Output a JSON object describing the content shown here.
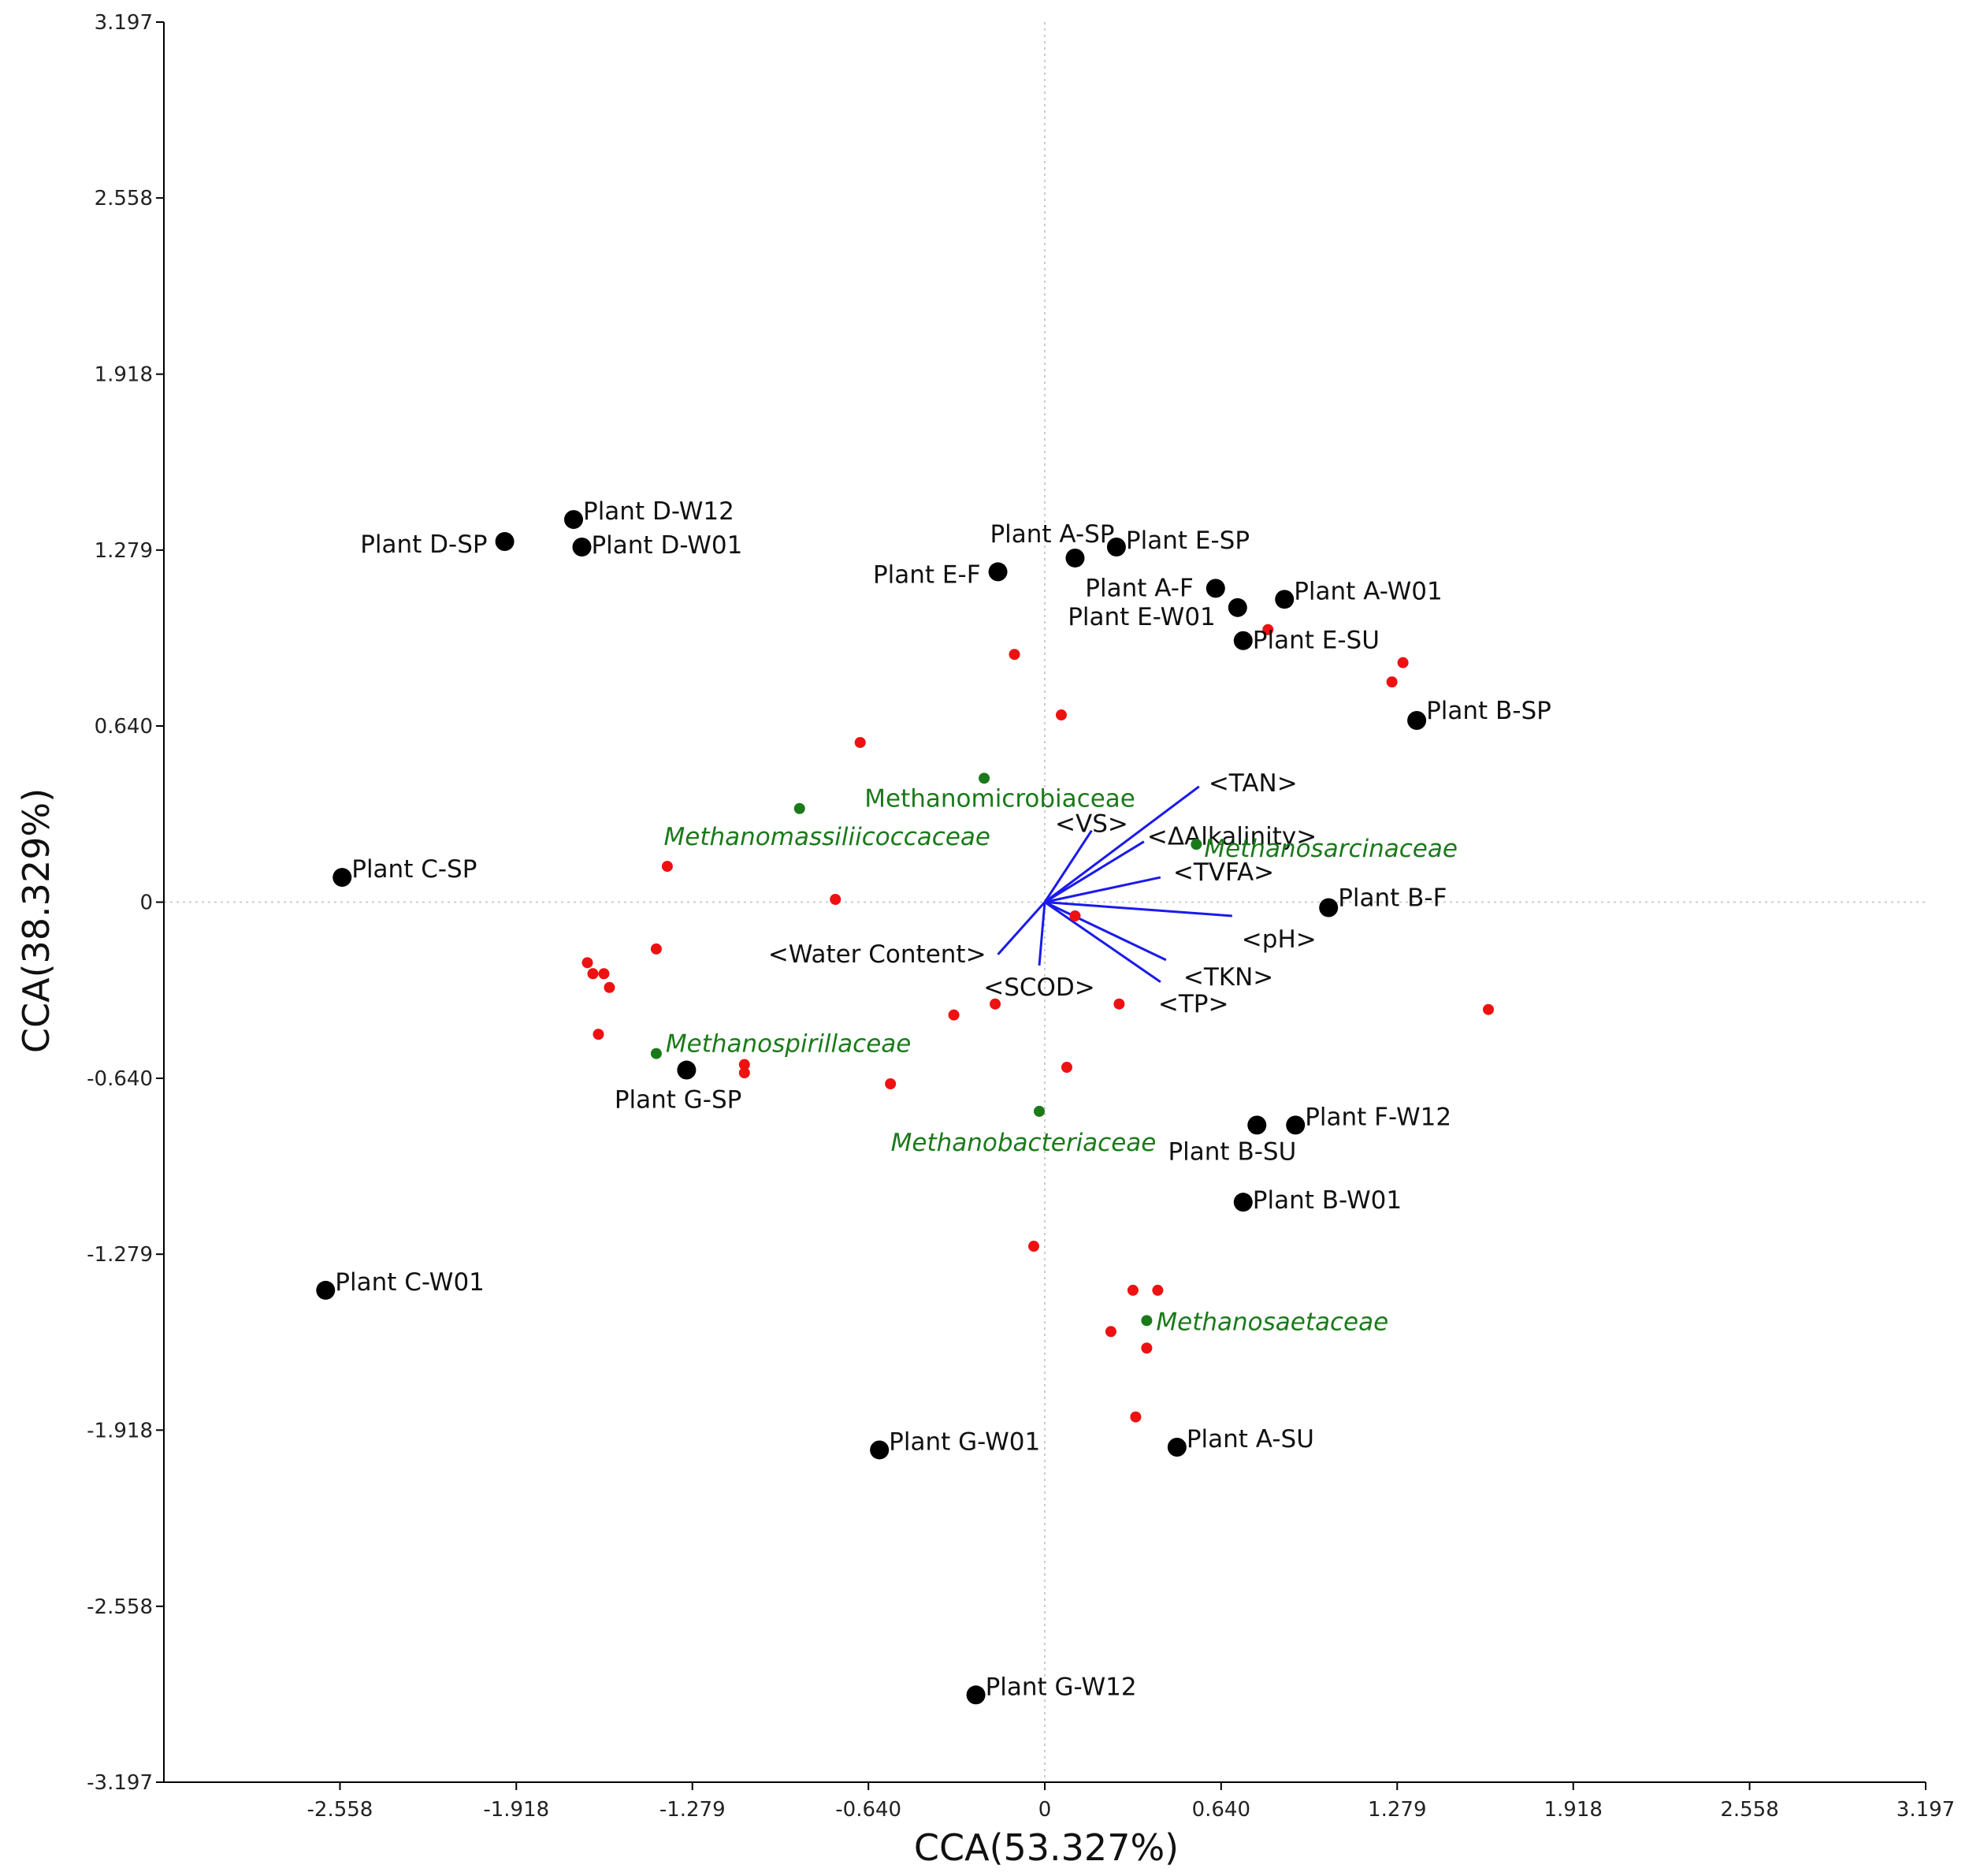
{
  "chart_data": {
    "type": "scatter",
    "xlabel": "CCA(53.327%)",
    "ylabel": "CCA(38.329%)",
    "xlim": [
      -3.197,
      3.197
    ],
    "ylim": [
      -3.197,
      3.197
    ],
    "x_ticks": [
      "-2.558",
      "-1.918",
      "-1.279",
      "-0.640",
      "0",
      "0.640",
      "1.279",
      "1.918",
      "2.558",
      "3.197"
    ],
    "y_ticks": [
      "3.197",
      "2.558",
      "1.918",
      "1.279",
      "0.640",
      "0",
      "-0.640",
      "-1.279",
      "-1.918",
      "-2.558",
      "-3.197"
    ],
    "grid": "dotted zero lines",
    "colors": {
      "sites": "#000000",
      "otus": "#ee1111",
      "taxa": "#1a7a1a",
      "env": "#1a1aee"
    },
    "sites": [
      {
        "label": "Plant D-W12",
        "x": -1.71,
        "y": 1.39
      },
      {
        "label": "Plant D-SP",
        "x": -1.96,
        "y": 1.31
      },
      {
        "label": "Plant D-W01",
        "x": -1.68,
        "y": 1.29
      },
      {
        "label": "Plant A-SP",
        "x": 0.11,
        "y": 1.25
      },
      {
        "label": "Plant E-SP",
        "x": 0.26,
        "y": 1.29
      },
      {
        "label": "Plant E-F",
        "x": -0.17,
        "y": 1.2
      },
      {
        "label": "Plant A-F",
        "x": 0.62,
        "y": 1.14
      },
      {
        "label": "Plant A-W01",
        "x": 0.87,
        "y": 1.1
      },
      {
        "label": "Plant E-W01",
        "x": 0.7,
        "y": 1.07
      },
      {
        "label": "Plant E-SU",
        "x": 0.72,
        "y": 0.95
      },
      {
        "label": "Plant B-SP",
        "x": 1.35,
        "y": 0.66
      },
      {
        "label": "Plant C-SP",
        "x": -2.55,
        "y": 0.09
      },
      {
        "label": "Plant B-F",
        "x": 1.03,
        "y": -0.02
      },
      {
        "label": "Plant G-SP",
        "x": -1.3,
        "y": -0.61
      },
      {
        "label": "Plant F-W12",
        "x": 0.91,
        "y": -0.81
      },
      {
        "label": "Plant B-SU",
        "x": 0.77,
        "y": -0.81
      },
      {
        "label": "Plant B-W01",
        "x": 0.72,
        "y": -1.09
      },
      {
        "label": "Plant C-W01",
        "x": -2.61,
        "y": -1.41
      },
      {
        "label": "Plant A-SU",
        "x": 0.48,
        "y": -1.98
      },
      {
        "label": "Plant G-W01",
        "x": -0.6,
        "y": -1.99
      },
      {
        "label": "Plant G-W12",
        "x": -0.25,
        "y": -2.88
      }
    ],
    "otus": [
      {
        "x": 0.81,
        "y": 0.99
      },
      {
        "x": -0.11,
        "y": 0.9
      },
      {
        "x": 1.3,
        "y": 0.87
      },
      {
        "x": 1.26,
        "y": 0.8
      },
      {
        "x": 0.06,
        "y": 0.68
      },
      {
        "x": -0.67,
        "y": 0.58
      },
      {
        "x": -1.37,
        "y": 0.13
      },
      {
        "x": -0.76,
        "y": 0.01
      },
      {
        "x": 0.11,
        "y": -0.05
      },
      {
        "x": -1.41,
        "y": -0.17
      },
      {
        "x": -1.66,
        "y": -0.22
      },
      {
        "x": -1.64,
        "y": -0.26
      },
      {
        "x": -1.6,
        "y": -0.26
      },
      {
        "x": -1.58,
        "y": -0.31
      },
      {
        "x": -1.62,
        "y": -0.48
      },
      {
        "x": -0.33,
        "y": -0.41
      },
      {
        "x": -0.18,
        "y": -0.37
      },
      {
        "x": 0.27,
        "y": -0.37
      },
      {
        "x": 1.61,
        "y": -0.39
      },
      {
        "x": -1.09,
        "y": -0.59
      },
      {
        "x": -1.09,
        "y": -0.62
      },
      {
        "x": 0.08,
        "y": -0.6
      },
      {
        "x": -0.56,
        "y": -0.66
      },
      {
        "x": -0.04,
        "y": -1.25
      },
      {
        "x": 0.32,
        "y": -1.41
      },
      {
        "x": 0.41,
        "y": -1.41
      },
      {
        "x": 0.24,
        "y": -1.56
      },
      {
        "x": 0.37,
        "y": -1.62
      },
      {
        "x": 0.33,
        "y": -1.87
      }
    ],
    "taxa": [
      {
        "label": "Methanomicrobiaceae",
        "x": -0.22,
        "y": 0.45,
        "italic": false
      },
      {
        "label": "Methanomassiliicoccaceae",
        "x": -0.89,
        "y": 0.34,
        "italic": true
      },
      {
        "label": "Methanosarcinaceae",
        "x": 0.55,
        "y": 0.21,
        "italic": true
      },
      {
        "label": "Methanospirillaceae",
        "x": -1.41,
        "y": -0.55,
        "italic": true
      },
      {
        "label": "Methanobacteriaceae",
        "x": -0.02,
        "y": -0.76,
        "italic": true
      },
      {
        "label": "Methanosaetaceae",
        "x": 0.37,
        "y": -1.52,
        "italic": true
      }
    ],
    "env_vectors": [
      {
        "label": "<TAN>",
        "x": 0.56,
        "y": 0.42
      },
      {
        "label": "<VS>",
        "x": 0.17,
        "y": 0.26
      },
      {
        "label": "<ΔAlkalinity>",
        "x": 0.36,
        "y": 0.22
      },
      {
        "label": "<TVFA>",
        "x": 0.42,
        "y": 0.09
      },
      {
        "label": "<pH>",
        "x": 0.68,
        "y": -0.05
      },
      {
        "label": "<Water Content>",
        "x": -0.17,
        "y": -0.19
      },
      {
        "label": "<SCOD>",
        "x": -0.02,
        "y": -0.23
      },
      {
        "label": "<TKN>",
        "x": 0.44,
        "y": -0.21
      },
      {
        "label": "<TP>",
        "x": 0.42,
        "y": -0.29
      }
    ]
  }
}
